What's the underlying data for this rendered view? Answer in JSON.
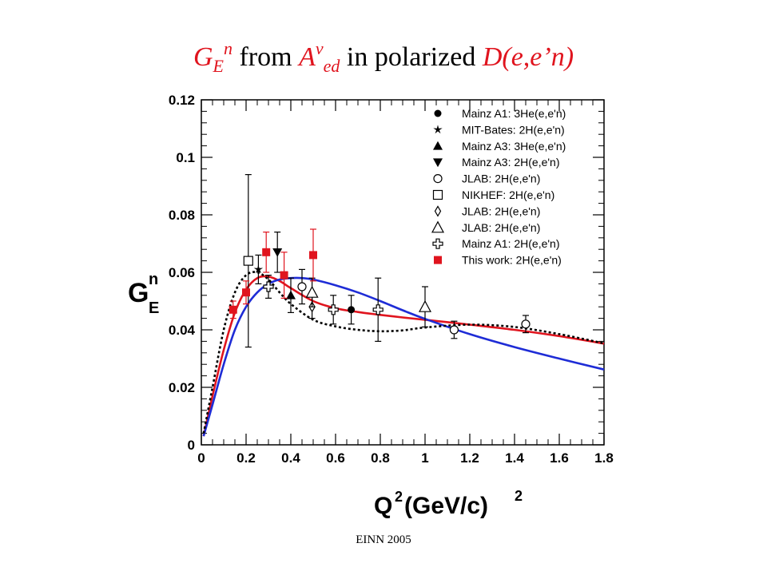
{
  "title": {
    "g": "G",
    "e_sub": "E",
    "n_sup": "n",
    "from": " from ",
    "a": "A",
    "v_sup": "v",
    "ed_sub": "ed",
    "in_polarized": " in polarized ",
    "reaction": "D(e,e’n)"
  },
  "footer": "EINN 2005",
  "chart_data": {
    "type": "scatter",
    "xlabel": {
      "base": "Q",
      "sup1": "2",
      "units": " (GeV/c)",
      "sup2": "2"
    },
    "ylabel": {
      "base": "G",
      "sub": "E",
      "sup": "n"
    },
    "xlim": [
      0,
      1.8
    ],
    "ylim": [
      0,
      0.12
    ],
    "xticks": [
      "0",
      "0.2",
      "0.4",
      "0.6",
      "0.8",
      "1",
      "1.2",
      "1.4",
      "1.6",
      "1.8"
    ],
    "yticks": [
      "0",
      "0.02",
      "0.04",
      "0.06",
      "0.08",
      "0.1",
      "0.12"
    ],
    "legend_position": "top-right",
    "series": [
      {
        "name": "Mainz A1: 3He(e,e'n)",
        "marker": "filled-circle",
        "color": "#000000",
        "points": [
          [
            0.67,
            0.047,
            0.005
          ]
        ]
      },
      {
        "name": "MIT-Bates: 2H(e,e'n)",
        "marker": "star",
        "color": "#000000",
        "points": [
          [
            0.255,
            0.061,
            0.005
          ]
        ]
      },
      {
        "name": "Mainz A3: 3He(e,e'n)",
        "marker": "filled-triangle-up",
        "color": "#000000",
        "points": [
          [
            0.4,
            0.052,
            0.006
          ]
        ]
      },
      {
        "name": "Mainz A3: 2H(e,e'n)",
        "marker": "filled-triangle-down",
        "color": "#000000",
        "points": [
          [
            0.34,
            0.067,
            0.007
          ]
        ]
      },
      {
        "name": "JLAB: 2H(e,e'n)",
        "marker": "open-circle",
        "color": "#000000",
        "points": [
          [
            0.45,
            0.055,
            0.006
          ],
          [
            1.13,
            0.04,
            0.003
          ],
          [
            1.45,
            0.042,
            0.003
          ]
        ]
      },
      {
        "name": "NIKHEF: 2H(e,e'n)",
        "marker": "open-square",
        "color": "#000000",
        "points": [
          [
            0.21,
            0.064,
            0.03
          ]
        ]
      },
      {
        "name": "JLAB: 2H(e,e'n)",
        "marker": "open-diamond",
        "color": "#000000",
        "points": [
          [
            0.495,
            0.048,
            0.004
          ]
        ]
      },
      {
        "name": "JLAB: 2H(e,e'n)",
        "marker": "open-triangle-up",
        "color": "#000000",
        "points": [
          [
            0.495,
            0.053,
            0.005
          ],
          [
            1.0,
            0.048,
            0.007
          ]
        ]
      },
      {
        "name": "Mainz A1: 2H(e,e'n)",
        "marker": "open-cross",
        "color": "#000000",
        "points": [
          [
            0.3,
            0.055,
            0.004
          ],
          [
            0.59,
            0.047,
            0.005
          ],
          [
            0.79,
            0.047,
            0.011
          ]
        ]
      },
      {
        "name": "This work: 2H(e,e'n)",
        "marker": "filled-square",
        "color": "#e0141e",
        "points": [
          [
            0.142,
            0.047,
            0.003
          ],
          [
            0.2,
            0.053,
            0.004
          ],
          [
            0.29,
            0.067,
            0.007
          ],
          [
            0.37,
            0.059,
            0.008
          ],
          [
            0.5,
            0.066,
            0.009
          ]
        ]
      }
    ],
    "curves": [
      {
        "style": "solid",
        "color": "#e0141e",
        "x": [
          0.01,
          0.05,
          0.1,
          0.15,
          0.2,
          0.25,
          0.3,
          0.35,
          0.4,
          0.5,
          0.6,
          0.7,
          0.8,
          0.9,
          1.0,
          1.2,
          1.4,
          1.6,
          1.8
        ],
        "y": [
          0.003,
          0.017,
          0.033,
          0.046,
          0.054,
          0.058,
          0.0585,
          0.057,
          0.0545,
          0.05,
          0.0475,
          0.0462,
          0.0452,
          0.0443,
          0.0435,
          0.0418,
          0.04,
          0.0378,
          0.0352
        ]
      },
      {
        "style": "solid",
        "color": "#1e2cd6",
        "x": [
          0.01,
          0.05,
          0.1,
          0.15,
          0.2,
          0.25,
          0.3,
          0.35,
          0.4,
          0.45,
          0.5,
          0.6,
          0.7,
          0.8,
          0.9,
          1.0,
          1.2,
          1.4,
          1.6,
          1.8
        ],
        "y": [
          0.003,
          0.014,
          0.028,
          0.04,
          0.048,
          0.053,
          0.056,
          0.0575,
          0.058,
          0.058,
          0.0575,
          0.0555,
          0.053,
          0.05,
          0.0468,
          0.0438,
          0.0385,
          0.034,
          0.03,
          0.0262
        ]
      },
      {
        "style": "dashed",
        "color": "#000000",
        "x": [
          0.01,
          0.05,
          0.1,
          0.15,
          0.2,
          0.25,
          0.3,
          0.35,
          0.4,
          0.5,
          0.6,
          0.7,
          0.8,
          0.9,
          1.0,
          1.2,
          1.4,
          1.6,
          1.8
        ],
        "y": [
          0.004,
          0.02,
          0.04,
          0.053,
          0.059,
          0.06,
          0.0575,
          0.053,
          0.049,
          0.0435,
          0.0412,
          0.04,
          0.0395,
          0.0398,
          0.0408,
          0.0418,
          0.041,
          0.0385,
          0.0353
        ]
      }
    ]
  }
}
